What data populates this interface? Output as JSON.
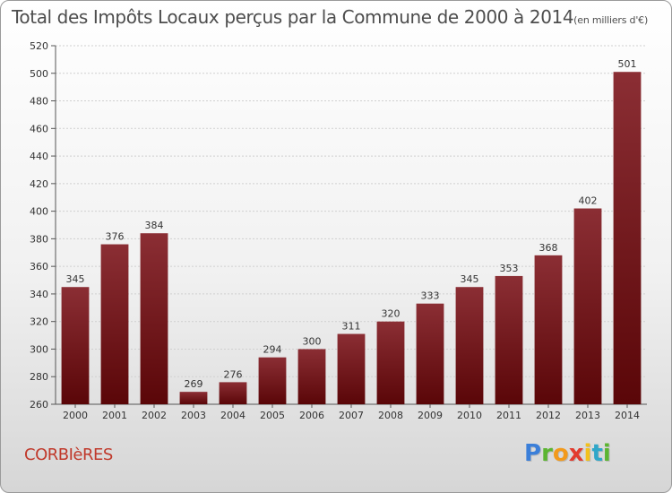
{
  "header": {
    "title": "Total des Impôts Locaux perçus par la Commune de 2000 à 2014",
    "subtitle": "(en milliers d'€)"
  },
  "footer": {
    "commune": "CORBIèRES",
    "logo_letters": [
      "P",
      "r",
      "o",
      "x",
      "i",
      "t",
      "i"
    ]
  },
  "colors": {
    "bar_top": "#8b2e34",
    "bar_bottom": "#5a0608",
    "commune_text": "#c0392b",
    "logo": [
      "#3b7fd9",
      "#5cb531",
      "#f29a1c",
      "#e23b2e",
      "#f2c11c",
      "#2fa7c9",
      "#5cb531"
    ]
  },
  "chart_data": {
    "type": "bar",
    "categories": [
      "2000",
      "2001",
      "2002",
      "2003",
      "2004",
      "2005",
      "2006",
      "2007",
      "2008",
      "2009",
      "2010",
      "2011",
      "2012",
      "2013",
      "2014"
    ],
    "values": [
      345,
      376,
      384,
      269,
      276,
      294,
      300,
      311,
      320,
      333,
      345,
      353,
      368,
      402,
      501
    ],
    "ylim": [
      260,
      520
    ],
    "yticks": [
      260,
      280,
      300,
      320,
      340,
      360,
      380,
      400,
      420,
      440,
      460,
      480,
      500,
      520
    ],
    "grid": true,
    "data_labels": true
  }
}
